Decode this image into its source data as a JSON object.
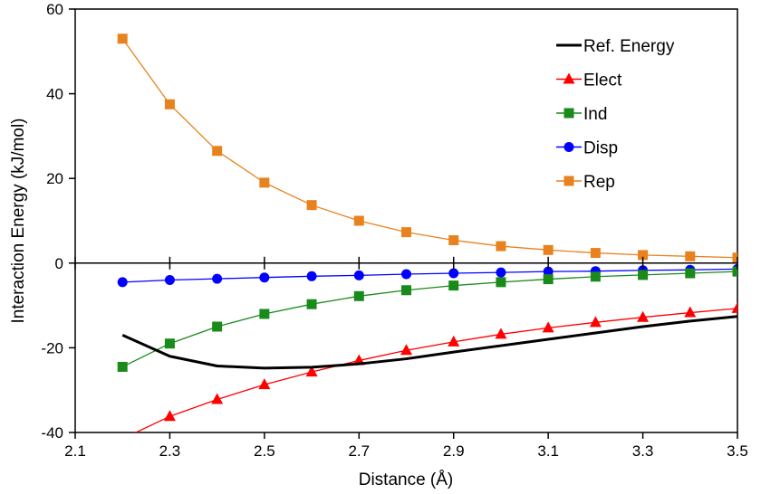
{
  "chart_data": {
    "type": "line",
    "xlabel": "Distance (Å)",
    "ylabel": "Interaction Energy (kJ/mol)",
    "xlim": [
      2.1,
      3.5
    ],
    "ylim": [
      -40,
      60
    ],
    "xticks": [
      "2.1",
      "2.3",
      "2.5",
      "2.7",
      "2.9",
      "3.1",
      "3.3",
      "3.5"
    ],
    "yticks": [
      "-40",
      "-20",
      "0",
      "20",
      "40",
      "60"
    ],
    "grid": false,
    "legend_position": "top-right",
    "x": [
      2.2,
      2.3,
      2.4,
      2.5,
      2.6,
      2.7,
      2.8,
      2.9,
      3.0,
      3.1,
      3.2,
      3.3,
      3.4,
      3.5
    ],
    "series": [
      {
        "name": "Ref. Energy",
        "color": "#000000",
        "marker": "none",
        "values": [
          -17.0,
          -22.0,
          -24.3,
          -24.8,
          -24.6,
          -23.8,
          -22.6,
          -21.0,
          -19.5,
          -18.0,
          -16.5,
          -15.0,
          -13.7,
          -12.6
        ]
      },
      {
        "name": "Elect",
        "color": "#ff0000",
        "marker": "triangle",
        "values": [
          -41.5,
          -36.2,
          -32.2,
          -28.7,
          -25.7,
          -23.0,
          -20.6,
          -18.6,
          -16.8,
          -15.3,
          -14.0,
          -12.8,
          -11.7,
          -10.7
        ]
      },
      {
        "name": "Ind",
        "color": "#1a8a1a",
        "marker": "square",
        "values": [
          -24.5,
          -19.0,
          -15.0,
          -12.0,
          -9.7,
          -7.8,
          -6.4,
          -5.3,
          -4.5,
          -3.8,
          -3.2,
          -2.8,
          -2.4,
          -2.0
        ]
      },
      {
        "name": "Disp",
        "color": "#0000ff",
        "marker": "circle",
        "values": [
          -4.5,
          -4.0,
          -3.7,
          -3.4,
          -3.1,
          -2.9,
          -2.6,
          -2.4,
          -2.2,
          -2.0,
          -1.9,
          -1.7,
          -1.6,
          -1.4
        ]
      },
      {
        "name": "Rep",
        "color": "#e8821e",
        "marker": "square",
        "values": [
          53.0,
          37.5,
          26.5,
          19.0,
          13.7,
          10.0,
          7.3,
          5.4,
          4.0,
          3.1,
          2.4,
          1.9,
          1.6,
          1.3
        ]
      }
    ]
  }
}
